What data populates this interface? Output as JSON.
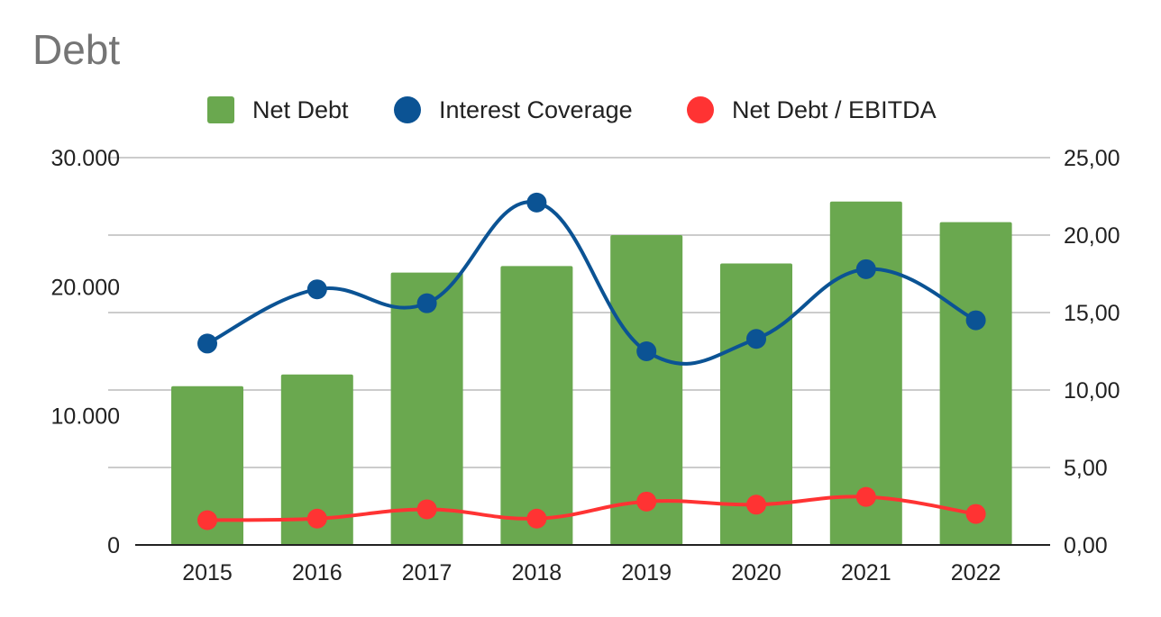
{
  "colors": {
    "net_debt": "#6aa84f",
    "interest_coverage": "#0b5394",
    "net_debt_ebitda": "#ff3333",
    "grid": "#cccccc",
    "title": "#757575"
  },
  "chart_data": {
    "type": "bar",
    "title": "Debt",
    "categories": [
      "2015",
      "2016",
      "2017",
      "2018",
      "2019",
      "2020",
      "2021",
      "2022"
    ],
    "left_axis": {
      "ticks": [
        "0",
        "10.000",
        "20.000",
        "30.000"
      ],
      "ylim": [
        0,
        30000
      ]
    },
    "right_axis": {
      "ticks": [
        "0,00",
        "5,00",
        "10,00",
        "15,00",
        "20,00",
        "25,00"
      ],
      "ylim": [
        0,
        25
      ]
    },
    "legend_position": "top",
    "grid": true,
    "series": [
      {
        "name": "Net Debt",
        "type": "bar",
        "axis": "left",
        "values": [
          12300,
          13200,
          21100,
          21600,
          24000,
          21800,
          26600,
          25000
        ]
      },
      {
        "name": "Interest Coverage",
        "type": "line",
        "axis": "right",
        "values": [
          13.0,
          16.5,
          15.6,
          22.1,
          12.5,
          13.3,
          17.8,
          14.5
        ]
      },
      {
        "name": "Net Debt / EBITDA",
        "type": "line",
        "axis": "right",
        "values": [
          1.6,
          1.7,
          2.3,
          1.7,
          2.8,
          2.6,
          3.1,
          2.0
        ]
      }
    ]
  }
}
